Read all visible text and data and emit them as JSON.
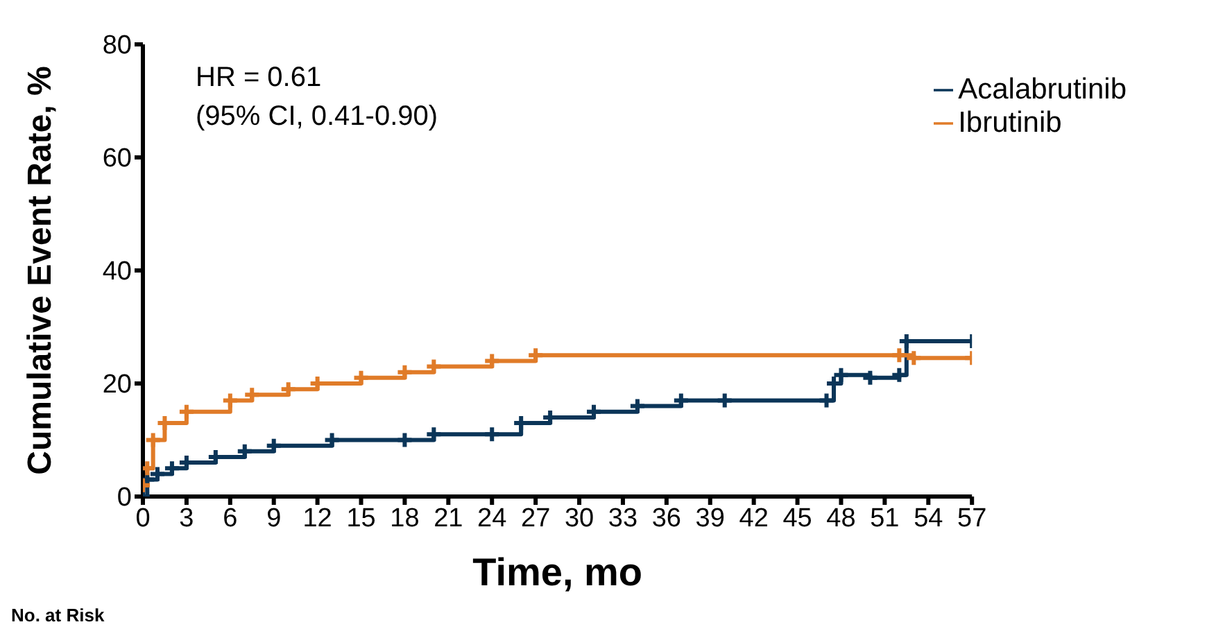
{
  "chart_data": {
    "type": "step",
    "xlabel": "Time, mo",
    "ylabel": "Cumulative Event Rate, %",
    "annotations": [
      "HR = 0.61",
      "(95% CI, 0.41-0.90)",
      "No. at Risk"
    ],
    "xlim": [
      0,
      57
    ],
    "xticks": [
      0,
      3,
      6,
      9,
      12,
      15,
      18,
      21,
      24,
      27,
      30,
      33,
      36,
      39,
      42,
      45,
      48,
      51,
      54,
      57
    ],
    "ylim": [
      0,
      80
    ],
    "yticks": [
      0,
      20,
      40,
      60,
      80
    ],
    "legend": "top right",
    "marker": "cross",
    "line_style": "solid",
    "series": [
      {
        "name": "Acalabrutinib",
        "color": "#0b3558",
        "x": [
          0,
          0.3,
          1,
          2,
          3,
          5,
          7,
          9,
          13,
          18,
          20,
          24,
          26,
          28,
          31,
          34,
          37,
          40,
          47,
          47.5,
          48,
          50,
          52,
          52.5,
          57
        ],
        "values": [
          0,
          3,
          4,
          5,
          6,
          7,
          8,
          9,
          10,
          10,
          11,
          11,
          13,
          14,
          15,
          16,
          17,
          17,
          17,
          20,
          21.5,
          21,
          21.5,
          27.5,
          27.5
        ]
      },
      {
        "name": "Ibrutinib",
        "color": "#e07b28",
        "x": [
          0,
          0.3,
          0.7,
          1.5,
          3,
          6,
          7.5,
          10,
          12,
          15,
          18,
          20,
          24,
          27,
          52,
          53,
          57
        ],
        "values": [
          2,
          5,
          10,
          13,
          15,
          17,
          18,
          19,
          20,
          21,
          22,
          23,
          24,
          25,
          25,
          24.5,
          24.5
        ]
      }
    ]
  }
}
